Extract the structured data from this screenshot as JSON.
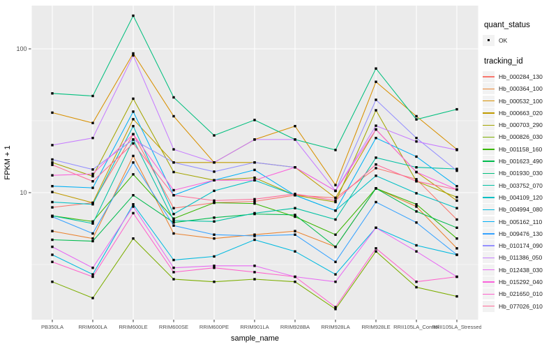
{
  "chart_data": {
    "type": "line",
    "title": "",
    "xlabel": "sample_name",
    "ylabel": "FPKM + 1",
    "y_scale": "log10",
    "y_ticks": [
      10,
      100
    ],
    "y_minor_ticks": [
      3.1623,
      31.623
    ],
    "ylim": [
      1.25,
      200
    ],
    "grid": "major-and-minor, white on grey panel",
    "legend_position": "right",
    "point_shape": "filled-square",
    "point_color": "#000000",
    "panel_bg": "#EBEBEB",
    "grid_color": "#FFFFFF",
    "axis_text_color": "#4D4D4D",
    "tick_color": "#333333",
    "x_categories": [
      "PB350LA",
      "RRIM600LA",
      "RRIM600LE",
      "RRIM600SE",
      "RRIM600PE",
      "RRIM901LA",
      "RRIM928BA",
      "RRIM928LA",
      "RRIM928LE",
      "RRII105LA_Control",
      "RRII105LA_Stressed"
    ],
    "quant_legend": {
      "title": "quant_status",
      "items": [
        {
          "label": "OK"
        }
      ]
    },
    "tracking_legend": {
      "title": "tracking_id"
    },
    "series": [
      {
        "name": "Hb_000284_130",
        "color": "#F8766D",
        "values": [
          7.9,
          8.5,
          25.5,
          7.8,
          8.5,
          8.7,
          9.6,
          9.2,
          14.8,
          12.4,
          6.5
        ]
      },
      {
        "name": "Hb_000364_100",
        "color": "#EA8331",
        "values": [
          5.4,
          4.8,
          18.0,
          5.2,
          4.8,
          5.1,
          5.4,
          4.2,
          10.7,
          8.0,
          4.1
        ]
      },
      {
        "name": "Hb_000532_100",
        "color": "#D89000",
        "values": [
          36,
          30.5,
          93,
          34,
          16.2,
          23.4,
          29,
          11.3,
          59,
          34,
          20
        ]
      },
      {
        "name": "Hb_000663_020",
        "color": "#C09B00",
        "values": [
          10.1,
          8.5,
          32.4,
          16.2,
          16.2,
          16.2,
          15.0,
          9.2,
          27.5,
          13.9,
          8.8
        ]
      },
      {
        "name": "Hb_000703_290",
        "color": "#A3A500",
        "values": [
          16.2,
          13.0,
          45,
          13.9,
          12.2,
          12.7,
          9.6,
          8.6,
          37.4,
          12.0,
          9.3
        ]
      },
      {
        "name": "Hb_000826_030",
        "color": "#7CAE00",
        "values": [
          2.4,
          1.85,
          4.8,
          2.5,
          2.4,
          2.5,
          2.4,
          1.55,
          3.9,
          2.2,
          1.9
        ]
      },
      {
        "name": "Hb_001158_160",
        "color": "#39B600",
        "values": [
          6.9,
          6.3,
          13.4,
          6.6,
          8.5,
          8.4,
          6.8,
          5.1,
          10.7,
          8.3,
          4.8
        ]
      },
      {
        "name": "Hb_001623_490",
        "color": "#00BB4E",
        "values": [
          4.7,
          4.6,
          9.6,
          6.2,
          6.7,
          7.1,
          7.0,
          4.2,
          10.7,
          7.4,
          5.7
        ]
      },
      {
        "name": "Hb_001930_030",
        "color": "#00BF7D",
        "values": [
          49,
          47,
          170,
          46,
          25,
          32,
          23.4,
          19.8,
          73,
          32.3,
          38
        ]
      },
      {
        "name": "Hb_003752_070",
        "color": "#00C1A3",
        "values": [
          6.9,
          6.1,
          23.4,
          6.4,
          6.3,
          7.2,
          7.8,
          6.5,
          17.5,
          15.0,
          14.6
        ]
      },
      {
        "name": "Hb_004109_120",
        "color": "#00BFC4",
        "values": [
          8.6,
          8.3,
          29,
          7.1,
          10.3,
          12.2,
          9.6,
          7.5,
          13.1,
          9.9,
          7.8
        ]
      },
      {
        "name": "Hb_004994_080",
        "color": "#00BAE0",
        "values": [
          3.7,
          2.7,
          8.3,
          3.4,
          3.6,
          4.7,
          3.9,
          2.7,
          5.7,
          4.3,
          3.7
        ]
      },
      {
        "name": "Hb_005162_110",
        "color": "#00B0F6",
        "values": [
          11.1,
          10.8,
          36.6,
          9.6,
          12.2,
          14.4,
          9.6,
          7.5,
          24,
          17.8,
          11.1
        ]
      },
      {
        "name": "Hb_009476_130",
        "color": "#35A2FF",
        "values": [
          6.8,
          5.2,
          16.2,
          5.9,
          5.1,
          5.0,
          5.1,
          3.3,
          8.6,
          6.2,
          3.7
        ]
      },
      {
        "name": "Hb_010174_090",
        "color": "#9590FF",
        "values": [
          17,
          14.5,
          23.4,
          16.2,
          14.0,
          16.2,
          15.0,
          10.3,
          44.2,
          24,
          14.2
        ]
      },
      {
        "name": "Hb_011386_050",
        "color": "#C77CFF",
        "values": [
          21.4,
          24,
          90,
          20,
          16.2,
          23.4,
          23.4,
          10.3,
          29.2,
          22.7,
          19.8
        ]
      },
      {
        "name": "Hb_012438_030",
        "color": "#E76BF3",
        "values": [
          4.2,
          3.0,
          8.0,
          3.0,
          3.1,
          3.1,
          2.6,
          2.4,
          5.7,
          3.9,
          2.6
        ]
      },
      {
        "name": "Hb_015292_040",
        "color": "#FA62DB",
        "values": [
          13.2,
          13.5,
          25.5,
          10.4,
          12.2,
          12.2,
          15.0,
          10.3,
          27.5,
          13.9,
          10.5
        ]
      },
      {
        "name": "Hb_021650_010",
        "color": "#FF61CC",
        "values": [
          3.3,
          2.6,
          7.2,
          2.8,
          3.0,
          2.8,
          2.6,
          1.6,
          4.1,
          2.4,
          2.6
        ]
      },
      {
        "name": "Hb_077026_010",
        "color": "#FF6A98",
        "values": [
          15.6,
          12.0,
          22.0,
          9.6,
          8.8,
          9.0,
          9.8,
          8.8,
          15.7,
          12.0,
          10.5
        ]
      }
    ]
  }
}
